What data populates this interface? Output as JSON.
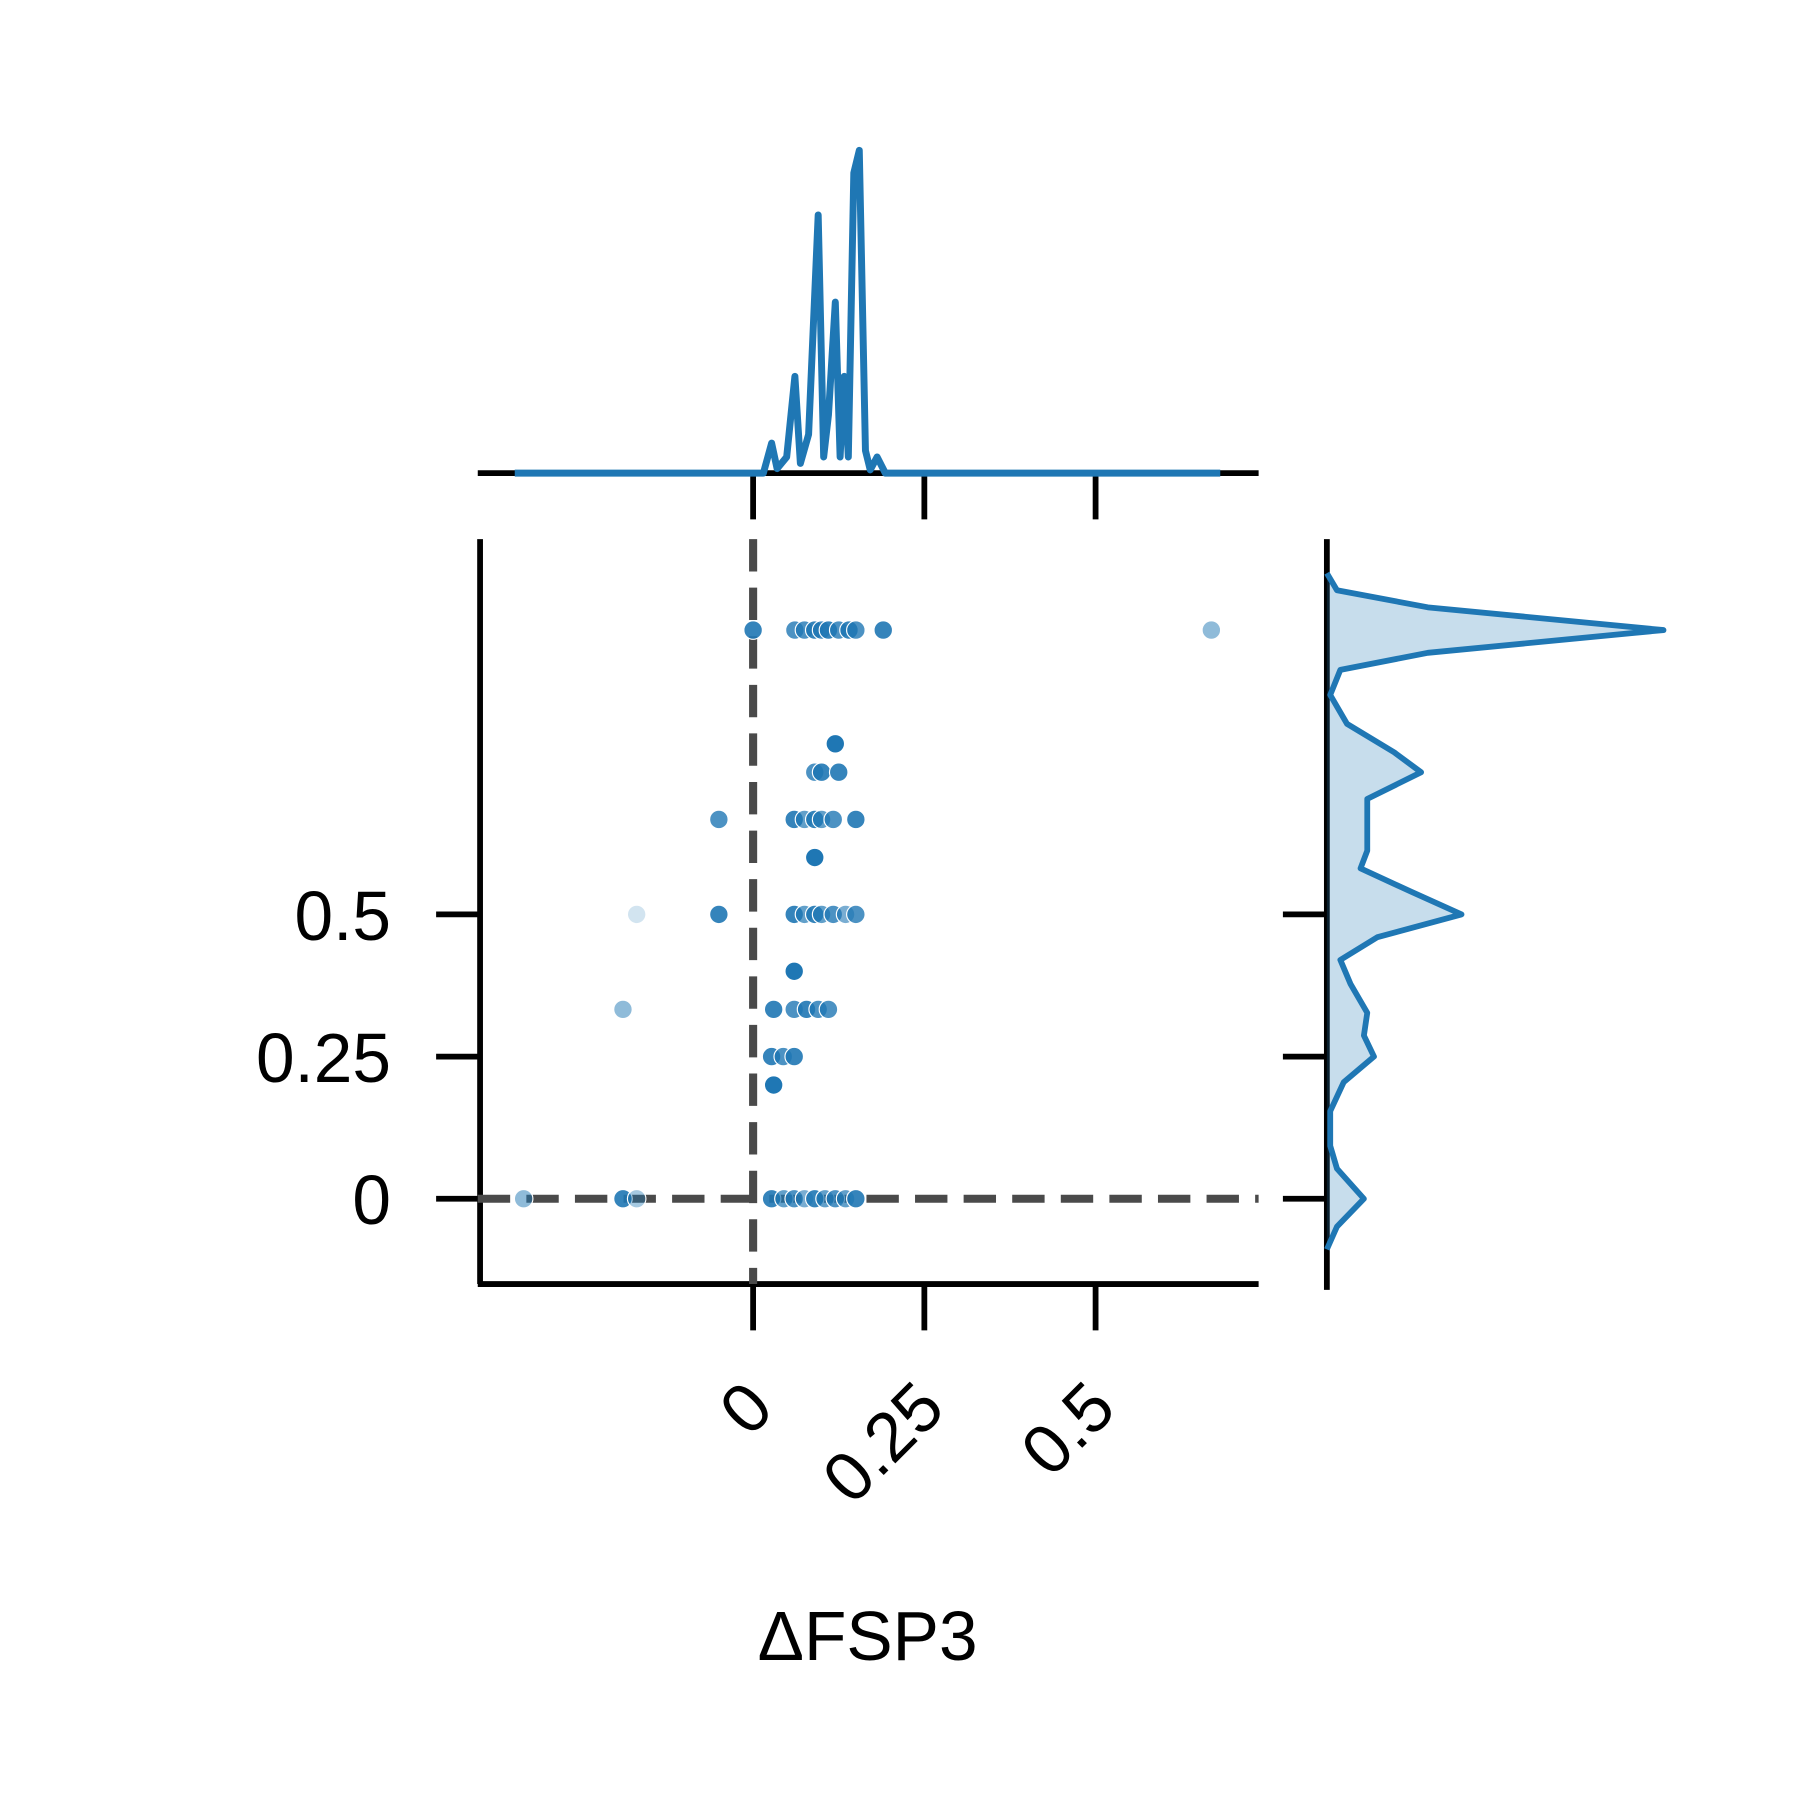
{
  "chart_data": {
    "type": "scatter",
    "x_label": "ΔFSP3",
    "xlim": [
      -0.402,
      0.738
    ],
    "xticks": [
      0,
      0.25,
      0.5
    ],
    "ylim": [
      -0.15,
      1.16
    ],
    "yticks": [
      0,
      0.25,
      0.5
    ],
    "ref_lines": {
      "x": 0,
      "y": 0
    },
    "color": "#1f77b4",
    "series": [
      {
        "name": "points",
        "x": [
          0,
          0.061,
          0.075,
          0.09,
          0.1,
          0.11,
          0.125,
          0.14,
          0.15,
          0.19,
          0.669,
          0.12,
          0.09,
          0.1,
          0.125,
          -0.05,
          0.06,
          0.075,
          0.09,
          0.1,
          0.117,
          0.15,
          0.09,
          -0.17,
          -0.05,
          0.06,
          0.075,
          0.09,
          0.1,
          0.117,
          0.135,
          0.15,
          0.06,
          -0.19,
          0.03,
          0.06,
          0.078,
          0.095,
          0.11,
          0.027,
          0.044,
          0.06,
          0.03,
          -0.335,
          -0.19,
          -0.17,
          0.027,
          0.045,
          0.06,
          0.075,
          0.09,
          0.105,
          0.12,
          0.135,
          0.15
        ],
        "y": [
          1,
          1,
          1,
          1,
          1,
          1,
          1,
          1,
          1,
          1,
          1,
          0.8,
          0.75,
          0.75,
          0.75,
          0.667,
          0.667,
          0.667,
          0.667,
          0.667,
          0.667,
          0.667,
          0.6,
          0.5,
          0.5,
          0.5,
          0.5,
          0.5,
          0.5,
          0.5,
          0.5,
          0.5,
          0.4,
          0.333,
          0.333,
          0.333,
          0.333,
          0.333,
          0.333,
          0.25,
          0.25,
          0.25,
          0.2,
          0,
          0,
          0,
          0,
          0,
          0,
          0,
          0,
          0,
          0,
          0,
          0
        ],
        "alpha": [
          0.9,
          0.8,
          0.8,
          0.9,
          0.8,
          0.9,
          0.8,
          0.9,
          0.8,
          0.9,
          0.5,
          1,
          0.8,
          0.9,
          0.9,
          0.8,
          0.9,
          0.7,
          0.9,
          0.7,
          0.8,
          0.9,
          1,
          0.2,
          0.9,
          0.9,
          0.7,
          0.9,
          0.7,
          0.8,
          0.6,
          0.8,
          1,
          0.5,
          0.9,
          0.8,
          0.9,
          0.8,
          0.8,
          0.9,
          0.8,
          0.9,
          1,
          0.5,
          0.9,
          0.4,
          0.9,
          0.7,
          0.8,
          0.6,
          0.9,
          0.7,
          0.8,
          0.7,
          0.9
        ]
      }
    ],
    "marginal_x": {
      "x": [
        -0.348,
        0.015,
        0.027,
        0.035,
        0.049,
        0.061,
        0.069,
        0.081,
        0.095,
        0.103,
        0.11,
        0.12,
        0.127,
        0.133,
        0.139,
        0.147,
        0.155,
        0.164,
        0.171,
        0.181,
        0.193,
        0.682
      ],
      "density": [
        0,
        0,
        0.093,
        0.014,
        0.05,
        0.3,
        0.03,
        0.12,
        0.8,
        0.05,
        0.18,
        0.53,
        0.05,
        0.3,
        0.05,
        0.93,
        1.0,
        0.07,
        0.01,
        0.05,
        0,
        0
      ]
    },
    "marginal_y": {
      "y": [
        1.1,
        1.07,
        1.04,
        1.0,
        0.96,
        0.93,
        0.886,
        0.835,
        0.785,
        0.75,
        0.703,
        0.663,
        0.612,
        0.581,
        0.54,
        0.5,
        0.46,
        0.42,
        0.378,
        0.327,
        0.287,
        0.25,
        0.205,
        0.154,
        0.093,
        0.053,
        0,
        -0.049,
        -0.089
      ],
      "density": [
        0,
        0.03,
        0.3,
        1.0,
        0.3,
        0.04,
        0.01,
        0.06,
        0.2,
        0.28,
        0.12,
        0.12,
        0.12,
        0.1,
        0.25,
        0.4,
        0.15,
        0.04,
        0.07,
        0.12,
        0.11,
        0.14,
        0.05,
        0.01,
        0.01,
        0.03,
        0.11,
        0.03,
        0
      ]
    }
  }
}
